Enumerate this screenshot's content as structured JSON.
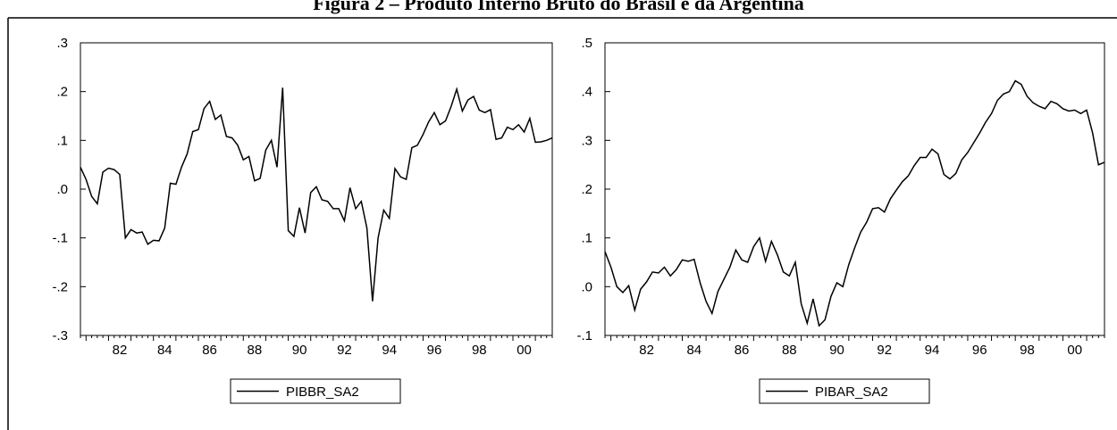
{
  "figure_title": "Figura 2 – Produto Interno Bruto do Brasil e da Argentina",
  "chart_data": [
    {
      "type": "line",
      "legend": "PIBBR_SA2",
      "legend_position": "bottom-center",
      "grid": false,
      "xlim": [
        1980.75,
        2001.75
      ],
      "ylim": [
        -0.3,
        0.3
      ],
      "yticks": [
        ".3",
        ".2",
        ".1",
        ".0",
        "-.1",
        "-.2",
        "-.3"
      ],
      "ytick_values": [
        0.3,
        0.2,
        0.1,
        0.0,
        -0.1,
        -0.2,
        -0.3
      ],
      "xticks": [
        "82",
        "84",
        "86",
        "88",
        "90",
        "92",
        "94",
        "96",
        "98",
        "00"
      ],
      "xtick_values": [
        1982,
        1984,
        1986,
        1988,
        1990,
        1992,
        1994,
        1996,
        1998,
        2000
      ],
      "series": [
        {
          "x": [
            1980.75,
            1981.0,
            1981.25,
            1981.5,
            1981.75,
            1982.0,
            1982.25,
            1982.5,
            1982.75,
            1983.0,
            1983.25,
            1983.5,
            1983.75,
            1984.0,
            1984.25,
            1984.5,
            1984.75,
            1985.0,
            1985.25,
            1985.5,
            1985.75,
            1986.0,
            1986.25,
            1986.5,
            1986.75,
            1987.0,
            1987.25,
            1987.5,
            1987.75,
            1988.0,
            1988.25,
            1988.5,
            1988.75,
            1989.0,
            1989.25,
            1989.5,
            1989.75,
            1990.0,
            1990.25,
            1990.5,
            1990.75,
            1991.0,
            1991.25,
            1991.5,
            1991.75,
            1992.0,
            1992.25,
            1992.5,
            1992.75,
            1993.0,
            1993.25,
            1993.5,
            1993.75,
            1994.0,
            1994.25,
            1994.5,
            1994.75,
            1995.0,
            1995.25,
            1995.5,
            1995.75,
            1996.0,
            1996.25,
            1996.5,
            1996.75,
            1997.0,
            1997.25,
            1997.5,
            1997.75,
            1998.0,
            1998.25,
            1998.5,
            1998.75,
            1999.0,
            1999.25,
            1999.5,
            1999.75,
            2000.0,
            2000.25,
            2000.5,
            2000.75,
            2001.0,
            2001.25,
            2001.5,
            2001.75
          ],
          "y": [
            0.045,
            0.02,
            -0.015,
            -0.03,
            0.035,
            0.043,
            0.04,
            0.03,
            -0.1,
            -0.083,
            -0.09,
            -0.088,
            -0.113,
            -0.105,
            -0.106,
            -0.08,
            0.012,
            0.01,
            0.045,
            0.072,
            0.118,
            0.122,
            0.165,
            0.18,
            0.143,
            0.152,
            0.108,
            0.105,
            0.09,
            0.06,
            0.067,
            0.017,
            0.022,
            0.08,
            0.1,
            0.045,
            0.208,
            -0.085,
            -0.097,
            -0.038,
            -0.09,
            -0.007,
            0.005,
            -0.022,
            -0.025,
            -0.04,
            -0.04,
            -0.065,
            0.003,
            -0.04,
            -0.025,
            -0.08,
            -0.23,
            -0.1,
            -0.043,
            -0.06,
            0.042,
            0.025,
            0.02,
            0.085,
            0.09,
            0.112,
            0.138,
            0.157,
            0.132,
            0.14,
            0.17,
            0.205,
            0.16,
            0.183,
            0.19,
            0.162,
            0.157,
            0.163,
            0.102,
            0.105,
            0.127,
            0.122,
            0.132,
            0.117,
            0.145,
            0.096,
            0.097,
            0.1,
            0.105
          ]
        }
      ]
    },
    {
      "type": "line",
      "legend": "PIBAR_SA2",
      "legend_position": "bottom-center",
      "grid": false,
      "xlim": [
        1980.75,
        2001.75
      ],
      "ylim": [
        -0.1,
        0.5
      ],
      "yticks": [
        ".5",
        ".4",
        ".3",
        ".2",
        ".1",
        ".0",
        "-.1"
      ],
      "ytick_values": [
        0.5,
        0.4,
        0.3,
        0.2,
        0.1,
        0.0,
        -0.1
      ],
      "xticks": [
        "82",
        "84",
        "86",
        "88",
        "90",
        "92",
        "94",
        "96",
        "98",
        "00"
      ],
      "xtick_values": [
        1982,
        1984,
        1986,
        1988,
        1990,
        1992,
        1994,
        1996,
        1998,
        2000
      ],
      "series": [
        {
          "x": [
            1980.75,
            1981.0,
            1981.25,
            1981.5,
            1981.75,
            1982.0,
            1982.25,
            1982.5,
            1982.75,
            1983.0,
            1983.25,
            1983.5,
            1983.75,
            1984.0,
            1984.25,
            1984.5,
            1984.75,
            1985.0,
            1985.25,
            1985.5,
            1985.75,
            1986.0,
            1986.25,
            1986.5,
            1986.75,
            1987.0,
            1987.25,
            1987.5,
            1987.75,
            1988.0,
            1988.25,
            1988.5,
            1988.75,
            1989.0,
            1989.25,
            1989.5,
            1989.75,
            1990.0,
            1990.25,
            1990.5,
            1990.75,
            1991.0,
            1991.25,
            1991.5,
            1991.75,
            1992.0,
            1992.25,
            1992.5,
            1992.75,
            1993.0,
            1993.25,
            1993.5,
            1993.75,
            1994.0,
            1994.25,
            1994.5,
            1994.75,
            1995.0,
            1995.25,
            1995.5,
            1995.75,
            1996.0,
            1996.25,
            1996.5,
            1996.75,
            1997.0,
            1997.25,
            1997.5,
            1997.75,
            1998.0,
            1998.25,
            1998.5,
            1998.75,
            1999.0,
            1999.25,
            1999.5,
            1999.75,
            2000.0,
            2000.25,
            2000.5,
            2000.75,
            2001.0,
            2001.25,
            2001.5,
            2001.75
          ],
          "y": [
            0.072,
            0.04,
            0.0,
            -0.012,
            0.002,
            -0.048,
            -0.005,
            0.01,
            0.03,
            0.028,
            0.04,
            0.022,
            0.035,
            0.055,
            0.052,
            0.056,
            0.008,
            -0.03,
            -0.055,
            -0.01,
            0.015,
            0.04,
            0.075,
            0.055,
            0.05,
            0.082,
            0.1,
            0.052,
            0.093,
            0.065,
            0.03,
            0.022,
            0.05,
            -0.035,
            -0.075,
            -0.025,
            -0.08,
            -0.068,
            -0.02,
            0.008,
            0.0,
            0.045,
            0.08,
            0.112,
            0.132,
            0.16,
            0.162,
            0.153,
            0.18,
            0.198,
            0.215,
            0.227,
            0.248,
            0.265,
            0.265,
            0.282,
            0.272,
            0.23,
            0.221,
            0.232,
            0.26,
            0.275,
            0.295,
            0.315,
            0.337,
            0.355,
            0.382,
            0.395,
            0.4,
            0.422,
            0.415,
            0.39,
            0.377,
            0.37,
            0.365,
            0.38,
            0.375,
            0.365,
            0.36,
            0.362,
            0.355,
            0.362,
            0.315,
            0.25,
            0.255
          ]
        }
      ]
    }
  ]
}
